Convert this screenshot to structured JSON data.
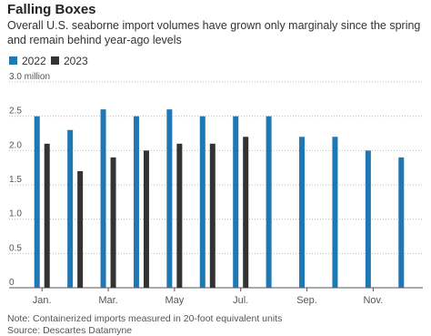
{
  "chart_data": {
    "type": "bar",
    "title": "Falling Boxes",
    "subtitle": "Overall U.S. seaborne import volumes have grown only marginaly since the spring and remain behind year-ago levels",
    "categories": [
      "Jan.",
      null,
      "Mar.",
      null,
      "May",
      null,
      "Jul.",
      null,
      "Sep.",
      null,
      "Nov.",
      null
    ],
    "series": [
      {
        "name": "2022",
        "color": "#1f77b4",
        "values": [
          2.5,
          2.3,
          2.6,
          2.5,
          2.6,
          2.5,
          2.5,
          2.5,
          2.2,
          2.2,
          2.0,
          1.9
        ]
      },
      {
        "name": "2023",
        "color": "#333333",
        "values": [
          2.1,
          1.7,
          1.9,
          2.0,
          2.1,
          2.1,
          2.2,
          null,
          null,
          null,
          null,
          null
        ]
      }
    ],
    "ylim": [
      0,
      3
    ],
    "yticks": [
      0,
      0.5,
      {
        "value": 1,
        "label": "1.0"
      },
      1.5,
      {
        "value": 2,
        "label": "2.0"
      },
      2.5,
      {
        "value": 3,
        "label": "3.0 million"
      }
    ],
    "grid": true,
    "note": "Note: Containerized imports measured in 20-foot equivalent units",
    "source": "Source: Descartes Datamyne"
  }
}
